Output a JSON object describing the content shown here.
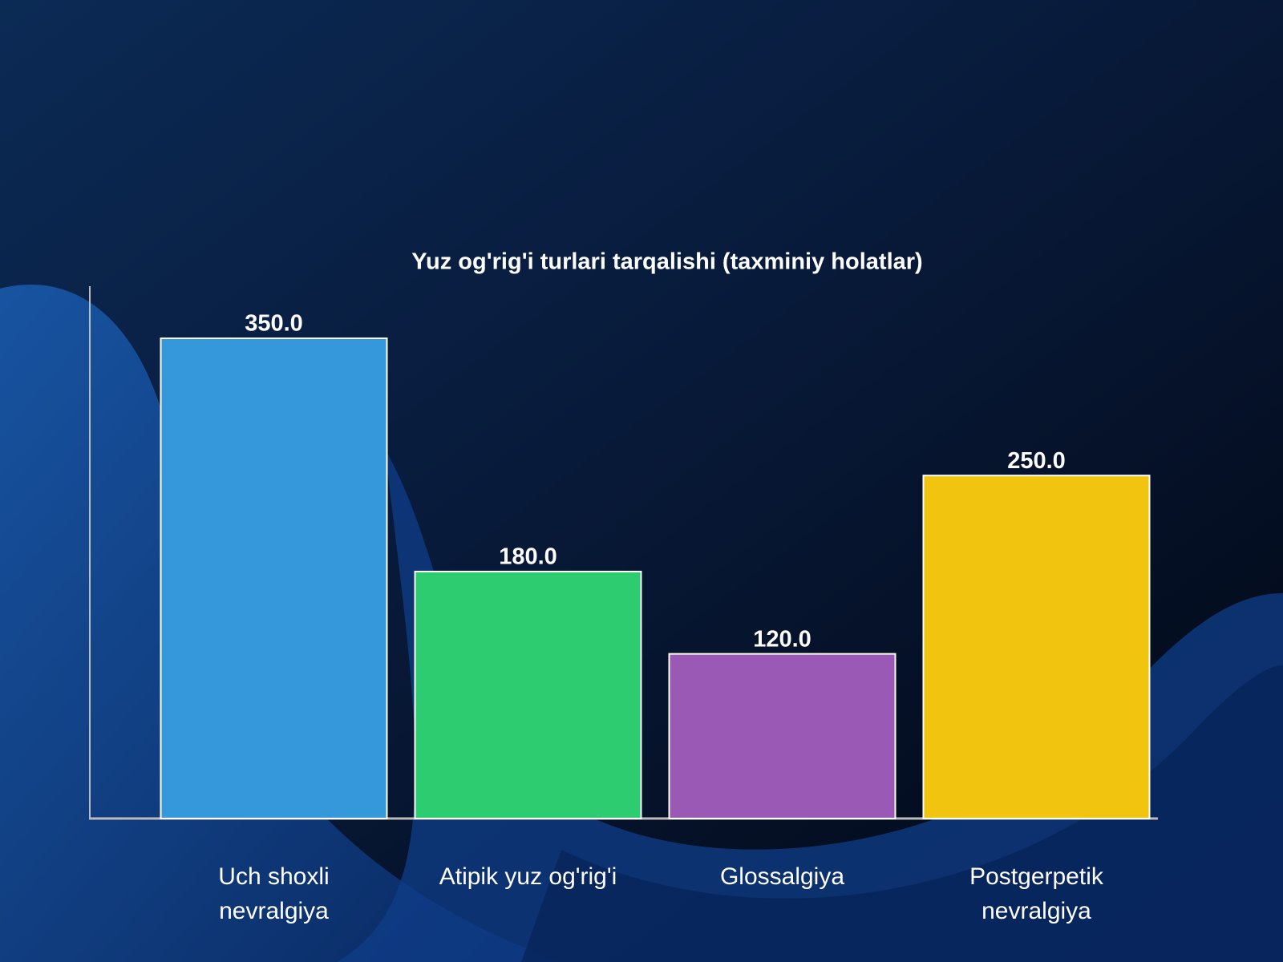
{
  "chart_data": {
    "type": "bar",
    "title": "Yuz og'rig'i turlari tarqalishi (taxminiy holatlar)",
    "categories": [
      "Uch shoxli\nnevralgiya",
      "Atipik yuz og'rig'i",
      "Glossalgiya",
      "Postgerpetik\nnevralgiya"
    ],
    "values": [
      350,
      180,
      120,
      250
    ],
    "value_labels": [
      "350.0",
      "180.0",
      "120.0",
      "250.0"
    ],
    "colors": [
      "#3498db",
      "#2ecc71",
      "#9b59b6",
      "#f1c40f"
    ],
    "ylim": [
      0,
      388
    ]
  }
}
